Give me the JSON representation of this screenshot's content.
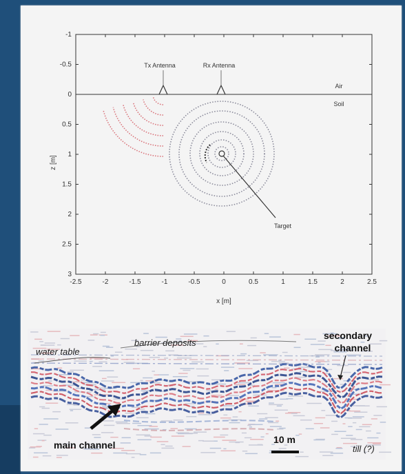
{
  "plot": {
    "y_ticks": [
      "-1",
      "-0.5",
      "0",
      "0.5",
      "1",
      "1.5",
      "2",
      "2.5",
      "3"
    ],
    "x_ticks": [
      "-2.5",
      "-2",
      "-1.5",
      "-1",
      "-0.5",
      "0",
      "0.5",
      "1",
      "1.5",
      "2",
      "2.5"
    ],
    "xlabel": "x [m]",
    "ylabel": "z [m]",
    "tx_label": "Tx Antenna",
    "rx_label": "Rx Antenna",
    "air_label": "Air",
    "soil_label": "Soil",
    "target_label": "Target",
    "colors": {
      "tx_waves": "#d9737a",
      "rx_waves": "#8a8a9a"
    }
  },
  "gpr": {
    "water_table": "water table",
    "barrier_deposits": "barrier deposits",
    "secondary_channel_line1": "secondary",
    "secondary_channel_line2": "channel",
    "main_channel": "main channel",
    "scale": "10 m",
    "till": "till (?)"
  }
}
